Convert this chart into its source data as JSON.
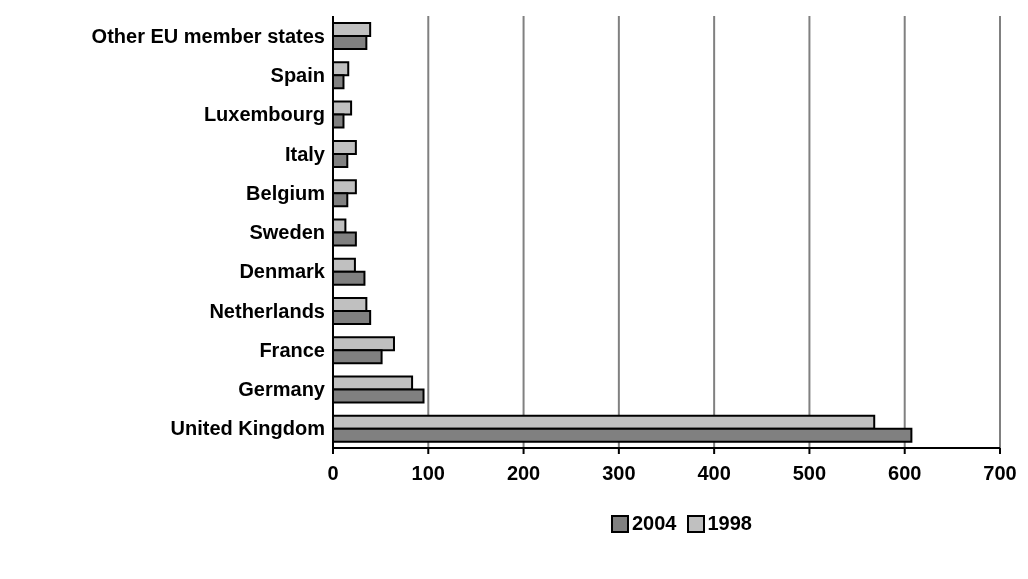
{
  "chart_data": {
    "type": "bar",
    "orientation": "horizontal",
    "categories": [
      "Other EU member states",
      "Spain",
      "Luxembourg",
      "Italy",
      "Belgium",
      "Sweden",
      "Denmark",
      "Netherlands",
      "France",
      "Germany",
      "United Kingdom"
    ],
    "series": [
      {
        "name": "2004",
        "color": "#808080",
        "values": [
          35,
          11,
          11,
          15,
          15,
          24,
          33,
          39,
          51,
          95,
          607
        ]
      },
      {
        "name": "1998",
        "color": "#c0c0c0",
        "values": [
          39,
          16,
          19,
          24,
          24,
          13,
          23,
          35,
          64,
          83,
          568
        ]
      }
    ],
    "xlim": [
      0,
      700
    ],
    "xticks": [
      0,
      100,
      200,
      300,
      400,
      500,
      600,
      700
    ],
    "grid": "x",
    "legend": "bottom"
  }
}
